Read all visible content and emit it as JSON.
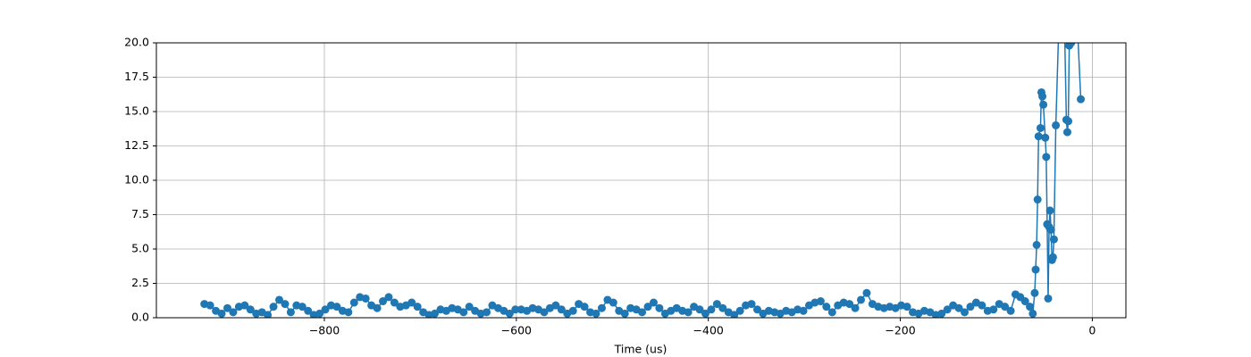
{
  "chart_data": {
    "type": "line",
    "xlabel": "Time (us)",
    "xlim": [
      -975,
      35
    ],
    "ylim": [
      0,
      20
    ],
    "xticks": [
      {
        "value": -800,
        "label": "−800"
      },
      {
        "value": -600,
        "label": "−600"
      },
      {
        "value": -400,
        "label": "−400"
      },
      {
        "value": -200,
        "label": "−200"
      },
      0
    ],
    "yticks": [
      {
        "value": 0,
        "label": "0.0"
      },
      2.5,
      {
        "value": 5,
        "label": "5.0"
      },
      7.5,
      {
        "value": 10,
        "label": "10.0"
      },
      12.5,
      {
        "value": 15,
        "label": "15.0"
      },
      17.5,
      {
        "value": 20,
        "label": "20.0"
      }
    ],
    "grid": true,
    "marker": "circle",
    "x": [
      -925,
      -919,
      -913,
      -907,
      -901,
      -895,
      -889,
      -883,
      -877,
      -871,
      -865,
      -859,
      -853,
      -847,
      -841,
      -835,
      -829,
      -823,
      -817,
      -811,
      -805,
      -799,
      -793,
      -787,
      -781,
      -775,
      -769,
      -763,
      -757,
      -751,
      -745,
      -739,
      -733,
      -727,
      -721,
      -715,
      -709,
      -703,
      -697,
      -691,
      -685,
      -679,
      -673,
      -667,
      -661,
      -655,
      -649,
      -643,
      -637,
      -631,
      -625,
      -619,
      -613,
      -607,
      -601,
      -595,
      -589,
      -583,
      -577,
      -571,
      -565,
      -559,
      -553,
      -547,
      -541,
      -535,
      -529,
      -523,
      -517,
      -511,
      -505,
      -499,
      -493,
      -487,
      -481,
      -475,
      -469,
      -463,
      -457,
      -451,
      -445,
      -439,
      -433,
      -427,
      -421,
      -415,
      -409,
      -403,
      -397,
      -391,
      -385,
      -379,
      -373,
      -367,
      -361,
      -355,
      -349,
      -343,
      -337,
      -331,
      -325,
      -319,
      -313,
      -307,
      -301,
      -295,
      -289,
      -283,
      -277,
      -271,
      -265,
      -259,
      -253,
      -247,
      -241,
      -235,
      -229,
      -223,
      -217,
      -211,
      -205,
      -199,
      -193,
      -187,
      -181,
      -175,
      -169,
      -163,
      -157,
      -151,
      -145,
      -139,
      -133,
      -127,
      -121,
      -115,
      -109,
      -103,
      -97,
      -91,
      -85,
      -80,
      -75,
      -70,
      -65,
      -62,
      -60,
      -59,
      -58,
      -57,
      -56,
      -54,
      -53,
      -52,
      -51,
      -49,
      -48,
      -47,
      -46,
      -45,
      -44,
      -43,
      -42,
      -41,
      -40,
      -38,
      -35,
      -30,
      -27,
      -26,
      -25,
      -24,
      -22,
      -18,
      -12
    ],
    "series": [
      {
        "color": "#1f77b4",
        "values": [
          1.0,
          0.9,
          0.5,
          0.3,
          0.7,
          0.4,
          0.8,
          0.9,
          0.6,
          0.3,
          0.4,
          0.2,
          0.8,
          1.3,
          1.0,
          0.4,
          0.9,
          0.8,
          0.5,
          0.2,
          0.3,
          0.6,
          0.9,
          0.8,
          0.5,
          0.4,
          1.1,
          1.5,
          1.4,
          0.9,
          0.7,
          1.2,
          1.5,
          1.1,
          0.8,
          0.9,
          1.1,
          0.8,
          0.4,
          0.2,
          0.3,
          0.6,
          0.5,
          0.7,
          0.6,
          0.4,
          0.8,
          0.5,
          0.3,
          0.4,
          0.9,
          0.7,
          0.5,
          0.3,
          0.6,
          0.6,
          0.5,
          0.7,
          0.6,
          0.4,
          0.7,
          0.9,
          0.6,
          0.3,
          0.5,
          1.0,
          0.8,
          0.4,
          0.3,
          0.7,
          1.3,
          1.1,
          0.5,
          0.3,
          0.7,
          0.6,
          0.4,
          0.8,
          1.1,
          0.7,
          0.3,
          0.5,
          0.7,
          0.5,
          0.4,
          0.8,
          0.6,
          0.3,
          0.6,
          1.0,
          0.7,
          0.4,
          0.2,
          0.5,
          0.9,
          1.0,
          0.6,
          0.3,
          0.5,
          0.4,
          0.3,
          0.5,
          0.4,
          0.6,
          0.5,
          0.9,
          1.1,
          1.2,
          0.8,
          0.4,
          0.9,
          1.1,
          1.0,
          0.7,
          1.3,
          1.8,
          1.0,
          0.8,
          0.7,
          0.8,
          0.7,
          0.9,
          0.8,
          0.4,
          0.3,
          0.5,
          0.4,
          0.2,
          0.3,
          0.6,
          0.9,
          0.7,
          0.4,
          0.8,
          1.1,
          0.9,
          0.5,
          0.6,
          1.0,
          0.8,
          0.5,
          1.7,
          1.5,
          1.2,
          0.8,
          0.3,
          1.8,
          3.5,
          5.3,
          8.6,
          13.2,
          13.8,
          16.4,
          16.1,
          15.5,
          13.1,
          11.7,
          6.8,
          1.4,
          6.6,
          7.8,
          6.4,
          4.2,
          4.4,
          5.7,
          14.0,
          21,
          25,
          14.4,
          13.5,
          14.3,
          19.8,
          20,
          25,
          15.9
        ]
      }
    ]
  }
}
